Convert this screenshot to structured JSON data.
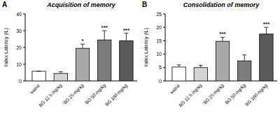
{
  "chart_data": [
    {
      "type": "bar",
      "label": "A",
      "title": "Acquisition of memory",
      "y_label": "Index Latency (IL)",
      "categories": [
        "saline",
        "BG 12.5 mg/kg",
        "BG 25 mg/kg",
        "BG 50 mg/kg",
        "BG 100 mg/kg"
      ],
      "values": [
        5.8,
        4.5,
        19.5,
        24.5,
        24
      ],
      "errors": [
        0,
        1,
        2.5,
        5.5,
        4.5
      ],
      "significance": [
        null,
        null,
        "*",
        "***",
        "***"
      ],
      "colors": [
        "#ffffff",
        "#d4d4d4",
        "#a8a8a8",
        "#7c7c7c",
        "#5a5a5a"
      ],
      "ylim": [
        0,
        40
      ],
      "yticks": [
        0,
        10,
        20,
        30,
        40
      ],
      "grid": false
    },
    {
      "type": "bar",
      "label": "B",
      "title": "Consolidation of memory",
      "y_label": "Index Latency (IL)",
      "categories": [
        "saline",
        "BG 12.5 mg/kg",
        "BG 25 mg/kg",
        "BG 50 mg/kg",
        "BG 100 mg/kg"
      ],
      "values": [
        5.2,
        5,
        14.8,
        7.5,
        17.5
      ],
      "errors": [
        0.8,
        0.8,
        1.5,
        2.2,
        2.5
      ],
      "significance": [
        null,
        null,
        "***",
        null,
        "***"
      ],
      "colors": [
        "#ffffff",
        "#d4d4d4",
        "#a8a8a8",
        "#7c7c7c",
        "#5a5a5a"
      ],
      "ylim": [
        0,
        25
      ],
      "yticks": [
        0,
        5,
        10,
        15,
        20,
        25
      ],
      "grid": false
    }
  ]
}
